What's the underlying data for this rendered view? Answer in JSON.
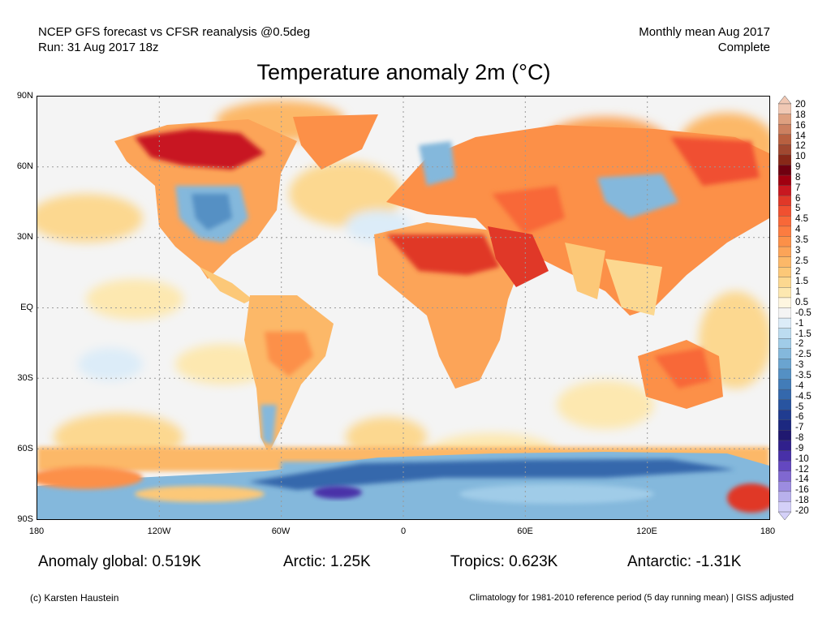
{
  "header": {
    "model_line": "NCEP GFS forecast vs CFSR reanalysis @0.5deg",
    "run_line": "Run: 31 Aug 2017 18z",
    "period_line": "Monthly mean Aug 2017",
    "status_line": "Complete"
  },
  "title": "Temperature anomaly 2m (°C)",
  "lat_labels": [
    "90N",
    "60N",
    "30N",
    "EQ",
    "30S",
    "60S",
    "90S"
  ],
  "lon_labels": [
    "180",
    "120W",
    "60W",
    "0",
    "60E",
    "120E",
    "180"
  ],
  "colorbar": {
    "labels": [
      "20",
      "18",
      "16",
      "14",
      "12",
      "10",
      "9",
      "8",
      "7",
      "6",
      "5",
      "4.5",
      "4",
      "3.5",
      "3",
      "2.5",
      "2",
      "1.5",
      "1",
      "0.5",
      "-0.5",
      "-1",
      "-1.5",
      "-2",
      "-2.5",
      "-3",
      "-3.5",
      "-4",
      "-4.5",
      "-5",
      "-6",
      "-7",
      "-8",
      "-9",
      "-10",
      "-12",
      "-14",
      "-16",
      "-18",
      "-20"
    ],
    "colors": [
      "#f0c8b4",
      "#dea080",
      "#cc8060",
      "#b86040",
      "#a04830",
      "#882818",
      "#700010",
      "#a00010",
      "#c81820",
      "#e03828",
      "#f05030",
      "#f86838",
      "#fc7c40",
      "#fc9048",
      "#fca458",
      "#fcb868",
      "#fcc878",
      "#fcd890",
      "#fde8b0",
      "#fef6e0",
      "#f4f4f4",
      "#dcecf8",
      "#bcdcf0",
      "#a0cce8",
      "#84b8dc",
      "#6aa4d0",
      "#5490c4",
      "#427cb8",
      "#3468ac",
      "#2854a0",
      "#203c90",
      "#1c2880",
      "#201870",
      "#30208c",
      "#4830a8",
      "#6448c0",
      "#8068d0",
      "#9c8ce0",
      "#b8b0ec",
      "#d4d0f8"
    ]
  },
  "stats": {
    "global": "Anomaly global: 0.519K",
    "arctic": "Arctic: 1.25K",
    "tropics": "Tropics: 0.623K",
    "antarctic": "Antarctic: -1.31K"
  },
  "footer": {
    "credit": "(c) Karsten Haustein",
    "note": "Climatology for 1981-2010 reference period (5 day running mean) | GISS adjusted"
  }
}
